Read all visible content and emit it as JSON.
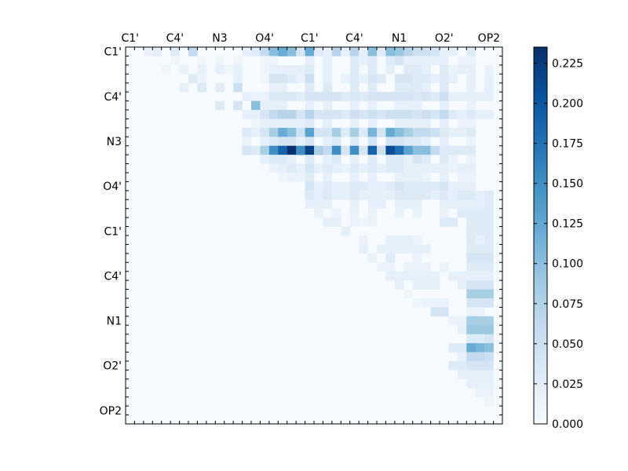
{
  "chart_data": {
    "type": "heatmap",
    "title": "",
    "xlabel": "",
    "ylabel": "",
    "n": 42,
    "atom_labels": [
      "C1'",
      "C4'",
      "N3",
      "O4'",
      "C1'",
      "C4'",
      "N1",
      "O2'",
      "OP2"
    ],
    "label_indices": [
      0,
      5,
      10,
      15,
      20,
      25,
      30,
      35,
      40
    ],
    "colorbar": {
      "min": 0.0,
      "max": 0.235,
      "ticks": [
        0.0,
        0.025,
        0.05,
        0.075,
        0.1,
        0.125,
        0.15,
        0.175,
        0.2,
        0.225
      ],
      "tick_labels": [
        "0.000",
        "0.025",
        "0.050",
        "0.075",
        "0.100",
        "0.125",
        "0.150",
        "0.175",
        "0.200",
        "0.225"
      ],
      "colors": [
        "#f7fbff",
        "#deebf7",
        "#c6dbef",
        "#9ecae1",
        "#6baed6",
        "#4292c6",
        "#2171b5",
        "#08519c",
        "#08306b"
      ]
    },
    "rows": [
      {
        "row": 0,
        "values": {
          "2": 0.015,
          "3": 0.02,
          "5": 0.03,
          "7": 0.06,
          "13": 0.02,
          "14": 0.03,
          "15": 0.06,
          "16": 0.1,
          "17": 0.12,
          "18": 0.1,
          "19": 0.04,
          "20": 0.12,
          "21": 0.03,
          "22": 0.02,
          "23": 0.07,
          "24": 0.02,
          "25": 0.07,
          "26": 0.02,
          "27": 0.1,
          "28": 0.03,
          "29": 0.1,
          "30": 0.09,
          "31": 0.07,
          "32": 0.05,
          "33": 0.05,
          "34": 0.04,
          "35": 0.02,
          "36": 0.02,
          "38": 0.03
        }
      },
      {
        "row": 1,
        "values": {
          "5": 0.01,
          "8": 0.01,
          "10": 0.01,
          "12": 0.01,
          "15": 0.01,
          "16": 0.01,
          "20": 0.02,
          "22": 0.02,
          "25": 0.03,
          "26": 0.02,
          "27": 0.03,
          "29": 0.03,
          "30": 0.04,
          "31": 0.02,
          "32": 0.02,
          "33": 0.02,
          "34": 0.02,
          "35": 0.02,
          "37": 0.015,
          "38": 0.015
        }
      },
      {
        "row": 2,
        "values": {
          "4": 0.01,
          "6": 0.015,
          "8": 0.02,
          "10": 0.02,
          "11": 0.01,
          "12": 0.02,
          "15": 0.01,
          "16": 0.02,
          "17": 0.02,
          "18": 0.02,
          "19": 0.02,
          "20": 0.03,
          "22": 0.02,
          "25": 0.03,
          "27": 0.03,
          "29": 0.02,
          "31": 0.03,
          "32": 0.03,
          "33": 0.02,
          "35": 0.03,
          "36": 0.015,
          "37": 0.02,
          "38": 0.02,
          "40": 0.015
        }
      },
      {
        "row": 3,
        "values": {
          "7": 0.03,
          "8": 0.015,
          "12": 0.02,
          "15": 0.01,
          "16": 0.04,
          "17": 0.04,
          "18": 0.03,
          "19": 0.015,
          "20": 0.05,
          "22": 0.02,
          "24": 0.015,
          "25": 0.03,
          "26": 0.02,
          "27": 0.04,
          "28": 0.03,
          "30": 0.04,
          "31": 0.04,
          "32": 0.03,
          "33": 0.03,
          "34": 0.02,
          "35": 0.03,
          "36": 0.02,
          "38": 0.02,
          "40": 0.02
        }
      },
      {
        "row": 4,
        "values": {
          "6": 0.02,
          "8": 0.03,
          "10": 0.025,
          "12": 0.05,
          "16": 0.02,
          "17": 0.02,
          "20": 0.03,
          "22": 0.03,
          "25": 0.03,
          "27": 0.03,
          "30": 0.03,
          "31": 0.03,
          "32": 0.03,
          "33": 0.02,
          "35": 0.03,
          "38": 0.02,
          "40": 0.02
        }
      },
      {
        "row": 5,
        "values": {
          "13": 0.02,
          "14": 0.015,
          "15": 0.015,
          "16": 0.035,
          "17": 0.035,
          "18": 0.035,
          "19": 0.025,
          "20": 0.04,
          "21": 0.04,
          "22": 0.04,
          "23": 0.04,
          "24": 0.03,
          "25": 0.035,
          "26": 0.03,
          "27": 0.04,
          "28": 0.04,
          "29": 0.04,
          "30": 0.04,
          "31": 0.04,
          "32": 0.035,
          "33": 0.04,
          "34": 0.03,
          "35": 0.05,
          "36": 0.02,
          "37": 0.02,
          "38": 0.02,
          "39": 0.02,
          "40": 0.02
        }
      },
      {
        "row": 6,
        "values": {
          "10": 0.03,
          "12": 0.04,
          "14": 0.1,
          "15": 0.02,
          "16": 0.02,
          "17": 0.02,
          "20": 0.02,
          "22": 0.02,
          "25": 0.02,
          "27": 0.02,
          "30": 0.02,
          "31": 0.02,
          "32": 0.02,
          "35": 0.02,
          "38": 0.015
        }
      },
      {
        "row": 7,
        "values": {
          "13": 0.02,
          "14": 0.02,
          "15": 0.04,
          "16": 0.06,
          "17": 0.07,
          "18": 0.07,
          "19": 0.04,
          "20": 0.07,
          "21": 0.04,
          "22": 0.04,
          "23": 0.04,
          "24": 0.03,
          "25": 0.05,
          "26": 0.04,
          "27": 0.05,
          "28": 0.04,
          "29": 0.05,
          "30": 0.05,
          "31": 0.05,
          "32": 0.04,
          "33": 0.05,
          "34": 0.04,
          "35": 0.06,
          "36": 0.03,
          "37": 0.02,
          "38": 0.03,
          "39": 0.02,
          "40": 0.02
        }
      },
      {
        "row": 8,
        "values": {
          "14": 0.01,
          "15": 0.02,
          "16": 0.02,
          "17": 0.02,
          "18": 0.02,
          "19": 0.02,
          "20": 0.03,
          "22": 0.02,
          "25": 0.02,
          "27": 0.02,
          "30": 0.02,
          "31": 0.02,
          "32": 0.02,
          "33": 0.02,
          "35": 0.02,
          "37": 0.015,
          "38": 0.015
        }
      },
      {
        "row": 9,
        "values": {
          "13": 0.03,
          "14": 0.02,
          "15": 0.04,
          "16": 0.08,
          "17": 0.12,
          "18": 0.1,
          "19": 0.05,
          "20": 0.13,
          "21": 0.04,
          "22": 0.04,
          "23": 0.08,
          "24": 0.03,
          "25": 0.08,
          "26": 0.03,
          "27": 0.11,
          "28": 0.04,
          "29": 0.12,
          "30": 0.1,
          "31": 0.08,
          "32": 0.06,
          "33": 0.06,
          "34": 0.05,
          "35": 0.03,
          "36": 0.02,
          "37": 0.02,
          "38": 0.03
        }
      },
      {
        "row": 10,
        "values": {
          "13": 0.015,
          "15": 0.02,
          "16": 0.03,
          "17": 0.04,
          "18": 0.04,
          "19": 0.02,
          "20": 0.04,
          "22": 0.02,
          "23": 0.03,
          "25": 0.03,
          "27": 0.04,
          "29": 0.04,
          "30": 0.04,
          "31": 0.03,
          "32": 0.03,
          "33": 0.02,
          "35": 0.02,
          "38": 0.015
        }
      },
      {
        "row": 11,
        "values": {
          "13": 0.04,
          "14": 0.03,
          "15": 0.08,
          "16": 0.15,
          "17": 0.19,
          "18": 0.235,
          "19": 0.15,
          "20": 0.22,
          "21": 0.08,
          "22": 0.06,
          "23": 0.15,
          "24": 0.04,
          "25": 0.15,
          "26": 0.04,
          "27": 0.19,
          "28": 0.05,
          "29": 0.21,
          "30": 0.18,
          "31": 0.13,
          "32": 0.1,
          "33": 0.1,
          "34": 0.06,
          "35": 0.03,
          "36": 0.03,
          "37": 0.03,
          "38": 0.03
        }
      },
      {
        "row": 12,
        "values": {
          "15": 0.02,
          "16": 0.03,
          "17": 0.03,
          "18": 0.02,
          "20": 0.03,
          "22": 0.02,
          "23": 0.03,
          "25": 0.02,
          "27": 0.03,
          "29": 0.03,
          "30": 0.03,
          "31": 0.02,
          "32": 0.04,
          "33": 0.03,
          "35": 0.03,
          "36": 0.015,
          "38": 0.015
        }
      },
      {
        "row": 13,
        "values": {
          "16": 0.015,
          "17": 0.02,
          "18": 0.03,
          "19": 0.02,
          "20": 0.04,
          "21": 0.02,
          "22": 0.03,
          "23": 0.02,
          "24": 0.015,
          "25": 0.03,
          "26": 0.02,
          "27": 0.03,
          "28": 0.02,
          "29": 0.03,
          "30": 0.03,
          "31": 0.02,
          "32": 0.02,
          "33": 0.02,
          "34": 0.02,
          "35": 0.02,
          "36": 0.015,
          "37": 0.02,
          "38": 0.02
        }
      },
      {
        "row": 14,
        "values": {
          "17": 0.01,
          "18": 0.015,
          "19": 0.015,
          "20": 0.03,
          "22": 0.02,
          "25": 0.02,
          "27": 0.02,
          "30": 0.02,
          "31": 0.02,
          "32": 0.02,
          "33": 0.015,
          "35": 0.02,
          "37": 0.015,
          "38": 0.015
        }
      },
      {
        "row": 15,
        "values": {
          "20": 0.04,
          "21": 0.02,
          "22": 0.03,
          "23": 0.02,
          "24": 0.02,
          "25": 0.03,
          "26": 0.03,
          "27": 0.02,
          "28": 0.02,
          "29": 0.03,
          "30": 0.04,
          "31": 0.03,
          "32": 0.03,
          "33": 0.03,
          "34": 0.03,
          "35": 0.04,
          "36": 0.02,
          "37": 0.02,
          "38": 0.02
        }
      },
      {
        "row": 16,
        "values": {
          "20": 0.03,
          "21": 0.02,
          "22": 0.03,
          "23": 0.02,
          "24": 0.02,
          "25": 0.03,
          "26": 0.02,
          "27": 0.02,
          "28": 0.02,
          "29": 0.02,
          "30": 0.03,
          "31": 0.03,
          "32": 0.03,
          "33": 0.03,
          "34": 0.02,
          "35": 0.03,
          "36": 0.02,
          "37": 0.03,
          "38": 0.03,
          "39": 0.02,
          "40": 0.03
        }
      },
      {
        "row": 17,
        "values": {
          "20": 0.02,
          "21": 0.02,
          "22": 0.02,
          "25": 0.02,
          "27": 0.02,
          "28": 0.02,
          "30": 0.02,
          "31": 0.02,
          "32": 0.02,
          "35": 0.02,
          "36": 0.02,
          "37": 0.02,
          "38": 0.02,
          "39": 0.02,
          "40": 0.03
        }
      },
      {
        "row": 18,
        "values": {
          "21": 0.015,
          "23": 0.015,
          "25": 0.015,
          "27": 0.015,
          "30": 0.015,
          "32": 0.015,
          "35": 0.015,
          "37": 0.03,
          "38": 0.03,
          "39": 0.03,
          "40": 0.03
        }
      },
      {
        "row": 19,
        "values": {
          "22": 0.02,
          "23": 0.02,
          "25": 0.015,
          "26": 0.01,
          "27": 0.015,
          "35": 0.03,
          "36": 0.03,
          "38": 0.03,
          "39": 0.03,
          "40": 0.03
        }
      },
      {
        "row": 20,
        "values": {
          "24": 0.02,
          "38": 0.03,
          "39": 0.03,
          "40": 0.03
        }
      },
      {
        "row": 21,
        "values": {
          "26": 0.015,
          "29": 0.02,
          "30": 0.02,
          "31": 0.02,
          "32": 0.015,
          "38": 0.03,
          "39": 0.02,
          "40": 0.03
        }
      },
      {
        "row": 22,
        "values": {
          "26": 0.02,
          "28": 0.02,
          "29": 0.02,
          "30": 0.02,
          "31": 0.02,
          "32": 0.02,
          "33": 0.02,
          "38": 0.03,
          "39": 0.03,
          "40": 0.03
        }
      },
      {
        "row": 23,
        "values": {
          "27": 0.015,
          "29": 0.03,
          "32": 0.015,
          "38": 0.04,
          "39": 0.04,
          "40": 0.04
        }
      },
      {
        "row": 24,
        "values": {
          "28": 0.015,
          "29": 0.015,
          "31": 0.015,
          "32": 0.015,
          "33": 0.015,
          "35": 0.015,
          "38": 0.03,
          "39": 0.03,
          "40": 0.03
        }
      },
      {
        "row": 25,
        "values": {
          "29": 0.02,
          "30": 0.02,
          "31": 0.02,
          "32": 0.02,
          "33": 0.02,
          "34": 0.02,
          "36": 0.02,
          "37": 0.02,
          "38": 0.02,
          "39": 0.02,
          "40": 0.02
        }
      },
      {
        "row": 26,
        "values": {
          "30": 0.02,
          "32": 0.02,
          "33": 0.02,
          "34": 0.02,
          "37": 0.02,
          "38": 0.04,
          "39": 0.04,
          "40": 0.04
        }
      },
      {
        "row": 27,
        "values": {
          "31": 0.01,
          "38": 0.08,
          "39": 0.08,
          "40": 0.08
        }
      },
      {
        "row": 28,
        "values": {
          "32": 0.01,
          "33": 0.015,
          "34": 0.015,
          "35": 0.015,
          "38": 0.04,
          "39": 0.04,
          "40": 0.04
        }
      },
      {
        "row": 29,
        "values": {
          "34": 0.04,
          "35": 0.04,
          "38": 0.015,
          "39": 0.015
        }
      },
      {
        "row": 30,
        "values": {
          "36": 0.015,
          "37": 0.015,
          "38": 0.08,
          "39": 0.08,
          "40": 0.08
        }
      },
      {
        "row": 31,
        "values": {
          "37": 0.02,
          "38": 0.09,
          "39": 0.09,
          "40": 0.09
        }
      },
      {
        "row": 32,
        "values": {
          "38": 0.03,
          "39": 0.03,
          "40": 0.04
        }
      },
      {
        "row": 33,
        "values": {
          "36": 0.03,
          "37": 0.03,
          "38": 0.12,
          "39": 0.11,
          "40": 0.1
        }
      },
      {
        "row": 34,
        "values": {
          "37": 0.02,
          "38": 0.06,
          "39": 0.06,
          "40": 0.05
        }
      },
      {
        "row": 35,
        "values": {
          "36": 0.03,
          "37": 0.03,
          "38": 0.04,
          "39": 0.04,
          "40": 0.04
        }
      },
      {
        "row": 36,
        "values": {
          "37": 0.02,
          "38": 0.02,
          "39": 0.02,
          "40": 0.02
        }
      },
      {
        "row": 37,
        "values": {
          "38": 0.02,
          "39": 0.02,
          "40": 0.02
        }
      },
      {
        "row": 38,
        "values": {
          "39": 0.015,
          "40": 0.015
        }
      },
      {
        "row": 39,
        "values": {
          "40": 0.01
        }
      }
    ]
  }
}
